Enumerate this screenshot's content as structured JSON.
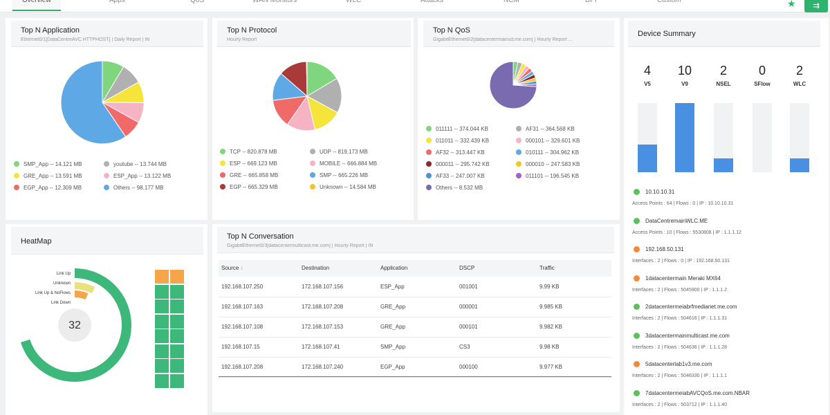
{
  "nav": {
    "tabs": [
      "Overview",
      "Apps",
      "QoS",
      "WAN Monitors",
      "WLC",
      "Attacks",
      "NCM",
      "DPI",
      "Custom"
    ],
    "colors": {
      "accent": "#2db36b"
    }
  },
  "top_app": {
    "title": "Top N Application",
    "subtitle": "Ethernet0/1[DataCentreAVC HTTPHOST] | Daily Report | IN",
    "chart_data": {
      "type": "pie",
      "slices": [
        {
          "name": "SMP_App",
          "value": 14.121,
          "color": "#7fd67f"
        },
        {
          "name": "youtube",
          "value": 13.744,
          "color": "#b0b0b0"
        },
        {
          "name": "GRE_App",
          "value": 13.591,
          "color": "#f5e43a"
        },
        {
          "name": "ESP_App",
          "value": 13.122,
          "color": "#f5b3c3"
        },
        {
          "name": "EGP_App",
          "value": 12.309,
          "color": "#f06a6a"
        },
        {
          "name": "Others",
          "value": 98.177,
          "color": "#5ea8e6"
        }
      ]
    },
    "legend": [
      {
        "label": "SMP_App -- 14.121 MB",
        "color": "#7fd67f"
      },
      {
        "label": "youtube -- 13.744 MB",
        "color": "#b0b0b0"
      },
      {
        "label": "GRE_App -- 13.591 MB",
        "color": "#f5e43a"
      },
      {
        "label": "ESP_App -- 13.122 MB",
        "color": "#f5b3c3"
      },
      {
        "label": "EGP_App -- 12.309 MB",
        "color": "#f06a6a"
      },
      {
        "label": "Others -- 98.177 MB",
        "color": "#5ea8e6"
      }
    ]
  },
  "top_protocol": {
    "title": "Top N Protocol",
    "subtitle": "Hourly Report",
    "chart_data": {
      "type": "pie",
      "slices": [
        {
          "name": "TCP",
          "value": 820.878,
          "color": "#7fd67f"
        },
        {
          "name": "UDP",
          "value": 819.173,
          "color": "#b0b0b0"
        },
        {
          "name": "ESP",
          "value": 669.123,
          "color": "#f5e43a"
        },
        {
          "name": "MOBILE",
          "value": 666.884,
          "color": "#f5b3c3"
        },
        {
          "name": "GRE",
          "value": 665.858,
          "color": "#f06a6a"
        },
        {
          "name": "SMP",
          "value": 665.226,
          "color": "#5ea8e6"
        },
        {
          "name": "EGP",
          "value": 665.329,
          "color": "#a83a3a"
        },
        {
          "name": "Unknown",
          "value": 14.584,
          "color": "#f5c428"
        }
      ]
    },
    "legend": [
      {
        "label": "TCP -- 820.878 MB",
        "color": "#7fd67f"
      },
      {
        "label": "UDP -- 819.173 MB",
        "color": "#b0b0b0"
      },
      {
        "label": "ESP -- 669.123 MB",
        "color": "#f5e43a"
      },
      {
        "label": "MOBILE -- 666.884 MB",
        "color": "#f5b3c3"
      },
      {
        "label": "GRE -- 665.858 MB",
        "color": "#f06a6a"
      },
      {
        "label": "SMP -- 665.226 MB",
        "color": "#5ea8e6"
      },
      {
        "label": "EGP -- 665.329 MB",
        "color": "#a83a3a"
      },
      {
        "label": "Unknown -- 14.584 MB",
        "color": "#f5c428"
      }
    ]
  },
  "top_qos": {
    "title": "Top N QoS",
    "subtitle": "GigabitEthernet0/2[datacentermainsd.me.com] | Hourly Report ...",
    "chart_data": {
      "type": "pie",
      "slices": [
        {
          "name": "011111",
          "value": 374.044,
          "color": "#7fd67f"
        },
        {
          "name": "AF31",
          "value": 364.568,
          "color": "#b0b0b0"
        },
        {
          "name": "011011",
          "value": 332.439,
          "color": "#f5e43a"
        },
        {
          "name": "000101",
          "value": 329.601,
          "color": "#f5b3c3"
        },
        {
          "name": "AF32",
          "value": 313.447,
          "color": "#f06a6a"
        },
        {
          "name": "010111",
          "value": 304.962,
          "color": "#5ea8e6"
        },
        {
          "name": "000011",
          "value": 295.742,
          "color": "#8a2a2a"
        },
        {
          "name": "000010",
          "value": 247.583,
          "color": "#f5c428"
        },
        {
          "name": "AF33",
          "value": 247.007,
          "color": "#4f8fd8"
        },
        {
          "name": "011101",
          "value": 196.545,
          "color": "#a060d0"
        },
        {
          "name": "Others",
          "value": 8532,
          "color": "#7a6ab0"
        }
      ]
    },
    "legend": [
      {
        "label": "011111 -- 374.044 KB",
        "color": "#7fd67f"
      },
      {
        "label": "AF31 -- 364.568 KB",
        "color": "#b0b0b0"
      },
      {
        "label": "011011 -- 332.439 KB",
        "color": "#f5e43a"
      },
      {
        "label": "000101 -- 329.601 KB",
        "color": "#f5b3c3"
      },
      {
        "label": "AF32 -- 313.447 KB",
        "color": "#f06a6a"
      },
      {
        "label": "010111 -- 304.962 KB",
        "color": "#5ea8e6"
      },
      {
        "label": "000011 -- 295.742 KB",
        "color": "#8a2a2a"
      },
      {
        "label": "000010 -- 247.583 KB",
        "color": "#f5c428"
      },
      {
        "label": "AF33 -- 247.007 KB",
        "color": "#4f8fd8"
      },
      {
        "label": "011101 -- 196.545 KB",
        "color": "#a060d0"
      },
      {
        "label": "Others -- 8.532 MB",
        "color": "#7a6ab0"
      }
    ]
  },
  "device_summary": {
    "title": "Device Summary",
    "chart_data": {
      "type": "bar",
      "categories": [
        "V5",
        "V9",
        "NSEL",
        "SFlow",
        "WLC"
      ],
      "values": [
        4,
        10,
        2,
        0,
        2
      ],
      "ylim": [
        0,
        10
      ]
    },
    "counts": [
      "4",
      "10",
      "2",
      "0",
      "2"
    ],
    "labels": [
      "V5",
      "V9",
      "NSEL",
      "SFlow",
      "WLC"
    ],
    "devices": [
      {
        "name": "10.10.10.31",
        "meta": "Access Points : 64  |  Flows : 0  |  IP : 10.10.10.31",
        "status": "#5cc05c"
      },
      {
        "name": "DataCentremainWLC.ME",
        "meta": "Access Points : 10  |  Flows : 5530808  |  IP : 1.1.1.12",
        "status": "#5cc05c"
      },
      {
        "name": "192.168.50.131",
        "meta": "Interfaces : 2  |  Flows : 0  |  IP : 192.168.50.131",
        "status": "#f08a3a"
      },
      {
        "name": "1datacentermain Meraki MX64",
        "meta": "Interfaces : 2  |  Flows : 5045900  |  IP : 1.1.1.2",
        "status": "#f08a3a"
      },
      {
        "name": "2datacentermeiabrfmedianet.me.com",
        "meta": "Interfaces : 2  |  Flows : 504616  |  IP : 1.1.1.31",
        "status": "#5cc05c"
      },
      {
        "name": "3datacentermainmulticast.me.com",
        "meta": "Interfaces : 2  |  Flows : 504636  |  IP : 1.1.1.28",
        "status": "#5cc05c"
      },
      {
        "name": "5datacenterlab1v3.me.com",
        "meta": "Interfaces : 2  |  Flows : 5046330  |  IP : 1.1.1.1",
        "status": "#f08a3a"
      },
      {
        "name": "7datacentermeiabAVCQoS.me.com.NBAR",
        "meta": "Interfaces : 2  |  Flows : 503712  |  IP : 1.1.1.40",
        "status": "#5cc05c"
      }
    ]
  },
  "heatmap": {
    "title": "HeatMap",
    "count": "32",
    "labels": [
      "Link Up",
      "Unknown",
      "Link Up & NoFlows",
      "Link Down"
    ],
    "colors": {
      "up": "#3db87a",
      "unknown": "#e8e07a",
      "noflows": "#f5a64a"
    },
    "grid": {
      "cols": 2,
      "rows": 8,
      "orange_cells": 2
    }
  },
  "conversation": {
    "title": "Top N Conversation",
    "subtitle": "GigabitEthernet0/3[datacentermulticast.me.com] | Hourly Report | IN",
    "columns": [
      "Source",
      "Destination",
      "Application",
      "DSCP",
      "Traffic"
    ],
    "rows": [
      [
        "192.168.107.250",
        "172.168.107.156",
        "ESP_App",
        "001001",
        "9.99 KB"
      ],
      [
        "192.168.107.163",
        "172.168.107.208",
        "GRE_App",
        "000001",
        "9.985 KB"
      ],
      [
        "192.168.107.108",
        "172.168.107.153",
        "GRE_App",
        "000101",
        "9.982 KB"
      ],
      [
        "192.168.107.15",
        "172.168.107.41",
        "SMP_App",
        "CS3",
        "9.98 KB"
      ],
      [
        "192.168.107.208",
        "172.168.107.240",
        "EGP_App",
        "000100",
        "9.977 KB"
      ]
    ]
  }
}
